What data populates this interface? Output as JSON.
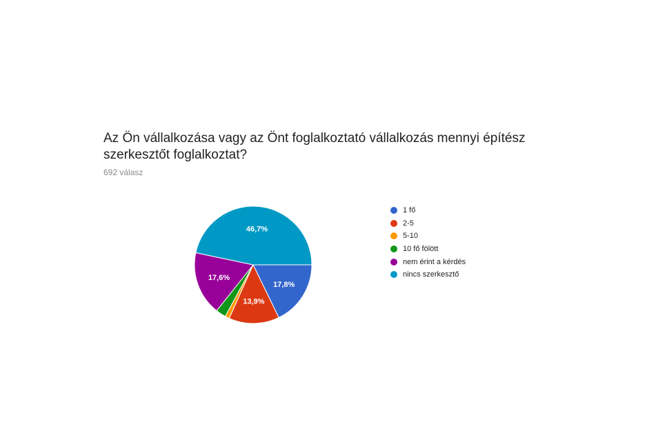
{
  "chart_data": {
    "type": "pie",
    "title": "Az Ön vállalkozása vagy az Önt foglalkoztató vállalkozás mennyi építész szerkesztőt foglalkoztat?",
    "subtitle": "692 válasz",
    "slices": [
      {
        "label": "1 fő",
        "value": 17.8,
        "display": "17,8%",
        "color": "#3366cc"
      },
      {
        "label": "2-5",
        "value": 13.9,
        "display": "13,9%",
        "color": "#dc3912"
      },
      {
        "label": "5-10",
        "value": 1.2,
        "display": "",
        "color": "#ff9900"
      },
      {
        "label": "10 fő fölött",
        "value": 2.8,
        "display": "",
        "color": "#109618"
      },
      {
        "label": "nem érint a kérdés",
        "value": 17.6,
        "display": "17,6%",
        "color": "#990099"
      },
      {
        "label": "nincs szerkesztő",
        "value": 46.7,
        "display": "46,7%",
        "color": "#0099c6"
      }
    ],
    "legend_position": "right"
  }
}
